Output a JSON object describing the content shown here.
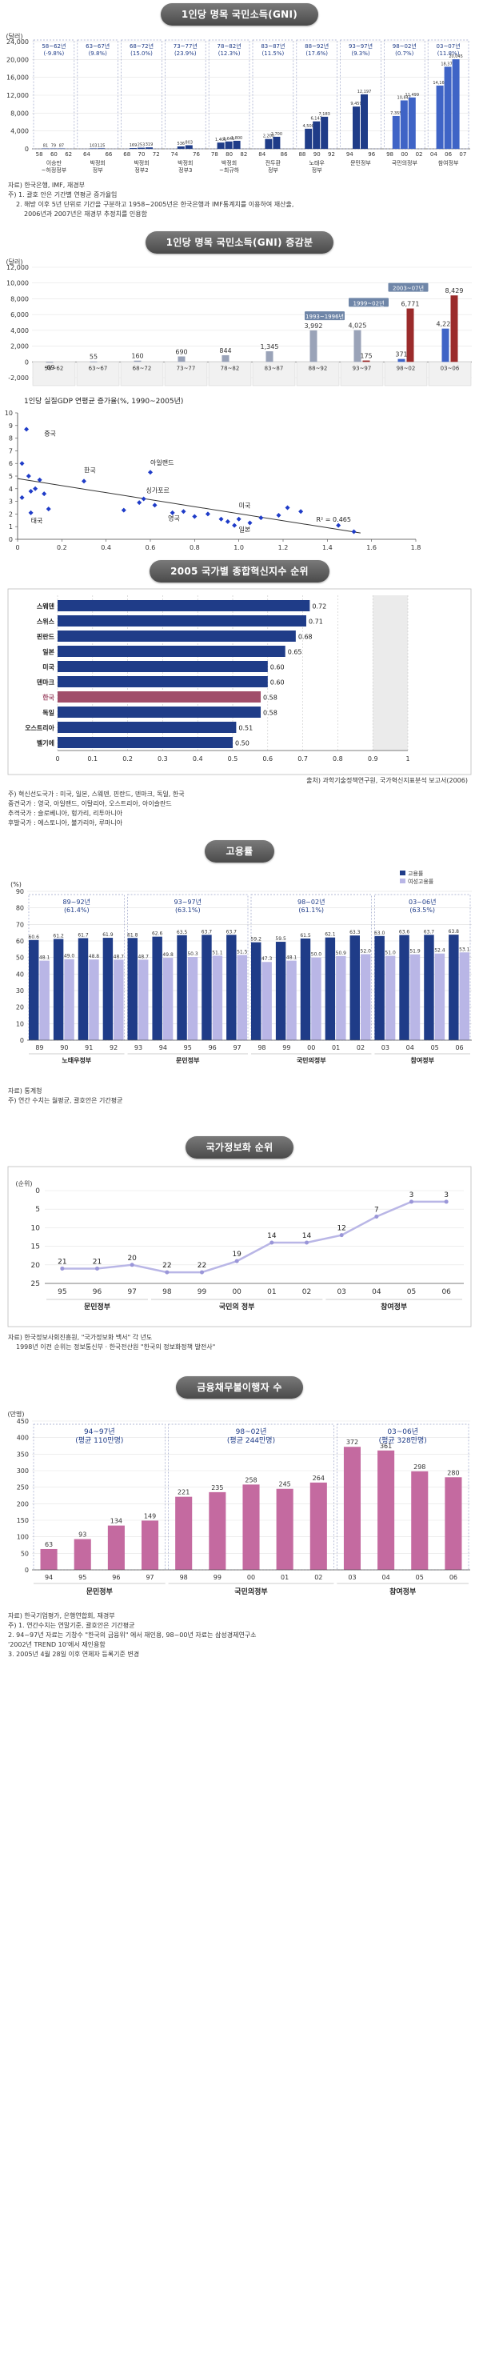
{
  "colors": {
    "pill_bg": "#5a5a5a",
    "bar_dark": "#1f3c88",
    "bar_mid": "#3f64c6",
    "bar_light": "#9aa3b8",
    "bar_red": "#9b2b2b",
    "line_pink": "#c46aa0",
    "line_lav": "#b9b6e6"
  },
  "gni": {
    "title": "1인당 명목 국민소득(GNI)",
    "note_src": "자료) 한국은행, IMF, 재경부",
    "note_lines": [
      "주) 1. 괄호 안은 기간별 연평균 증가율임",
      "2. 해방 이후 5년 단위로 기간을 구분하고 1958~2005년은 한국은행과 IMF통계치를 이용하여 재산출,",
      "2006년과 2007년은 재경부 추정치를 인용함"
    ],
    "chart_data": {
      "type": "bar",
      "ylabel": "(달러)",
      "ylim": [
        0,
        24000
      ],
      "yticks": [
        "0",
        "4,000",
        "8,000",
        "12,000",
        "16,000",
        "20,000",
        "24,000"
      ],
      "groups": [
        {
          "period": "58~62년\n(-9.8%)",
          "label": "이승만\n~허정정부",
          "years": [
            "58",
            "60",
            "62"
          ],
          "values": [
            81,
            79,
            87
          ]
        },
        {
          "period": "63~67년\n(9.8%)",
          "label": "박정희\n정부",
          "years": [
            "64",
            "66"
          ],
          "values": [
            103,
            125
          ]
        },
        {
          "period": "68~72년\n(15.0%)",
          "label": "박정희\n정부2",
          "years": [
            "68",
            "70",
            "72"
          ],
          "values": [
            169,
            253,
            319
          ]
        },
        {
          "period": "73~77년\n(23.9%)",
          "label": "박정희\n정부3",
          "years": [
            "74",
            "76"
          ],
          "values": [
            536,
            803
          ]
        },
        {
          "period": "78~82년\n(12.3%)",
          "label": "박정희\n~최규하",
          "years": [
            "78",
            "80",
            "82"
          ],
          "values": [
            1400,
            1645,
            1800
          ]
        },
        {
          "period": "83~87년\n(11.5%)",
          "label": "전두환\n정부",
          "years": [
            "84",
            "86"
          ],
          "values": [
            2200,
            2700
          ]
        },
        {
          "period": "88~92년\n(17.6%)",
          "label": "노태우\n정부",
          "years": [
            "88",
            "90",
            "92"
          ],
          "values": [
            4500,
            6147,
            7183
          ]
        },
        {
          "period": "93~97년\n(9.3%)",
          "label": "문민정부",
          "years": [
            "94",
            "96"
          ],
          "values": [
            9459,
            12197
          ]
        },
        {
          "period": "98~02년\n(0.7%)",
          "label": "국민의정부",
          "years": [
            "98",
            "00",
            "02"
          ],
          "values": [
            7355,
            10841,
            11499
          ]
        },
        {
          "period": "03~07년\n(11.8%)",
          "label": "참여정부",
          "years": [
            "04",
            "06",
            "07"
          ],
          "values": [
            14162,
            18372,
            20045
          ]
        }
      ]
    }
  },
  "gni_change": {
    "title": "1인당 명목 국민소득(GNI) 증감분",
    "chart_data": {
      "type": "bar",
      "ylabel": "(달러)",
      "ylim": [
        -2000,
        12000
      ],
      "yticks": [
        "-2,000",
        "0",
        "2,000",
        "4,000",
        "6,000",
        "8,000",
        "10,000",
        "12,000"
      ],
      "categories": [
        "58~62",
        "63~67",
        "68~72",
        "73~77",
        "78~82",
        "83~87",
        "88~92",
        "93~97",
        "98~02",
        "03~06"
      ],
      "values": [
        -69,
        55,
        160,
        690,
        844,
        1345,
        3992,
        4025,
        371,
        4222
      ],
      "extra": [
        {
          "category": "93~97",
          "value": 175
        },
        {
          "category": "98~02",
          "value": 6771
        },
        {
          "category": "03~06",
          "value": 8429
        }
      ],
      "callouts": [
        "1993~1996년",
        "1999~02년",
        "2003~07년"
      ]
    }
  },
  "scatter": {
    "title": "1인당 실질GDP 연평균 증가율(%, 1990~2005년)",
    "xlabel": "1인당 실질GDP(1990년 미국=1 기준)",
    "chart_data": {
      "type": "scatter",
      "xlim": [
        0,
        1.8
      ],
      "ylim": [
        0,
        10
      ],
      "xticks": [
        "0",
        "0.2",
        "0.4",
        "0.6",
        "0.8",
        "1.0",
        "1.2",
        "1.4",
        "1.6",
        "1.8"
      ],
      "yticks": [
        "0",
        "1",
        "2",
        "3",
        "4",
        "5",
        "6",
        "7",
        "8",
        "9",
        "10"
      ],
      "points": [
        [
          0.04,
          8.7
        ],
        [
          0.02,
          6.0
        ],
        [
          0.05,
          5.0
        ],
        [
          0.1,
          4.7
        ],
        [
          0.08,
          4.0
        ],
        [
          0.06,
          3.8
        ],
        [
          0.12,
          3.6
        ],
        [
          0.02,
          3.3
        ],
        [
          0.06,
          2.1
        ],
        [
          0.14,
          2.4
        ],
        [
          0.3,
          4.6
        ],
        [
          0.6,
          5.3
        ],
        [
          0.57,
          3.2
        ],
        [
          0.48,
          2.3
        ],
        [
          0.55,
          2.9
        ],
        [
          0.62,
          2.7
        ],
        [
          0.7,
          2.1
        ],
        [
          0.75,
          2.2
        ],
        [
          0.8,
          1.8
        ],
        [
          0.86,
          2.0
        ],
        [
          0.92,
          1.6
        ],
        [
          0.95,
          1.4
        ],
        [
          1.0,
          1.6
        ],
        [
          1.05,
          1.3
        ],
        [
          1.1,
          1.7
        ],
        [
          1.18,
          1.9
        ],
        [
          1.22,
          2.5
        ],
        [
          1.28,
          2.2
        ],
        [
          1.45,
          1.1
        ],
        [
          1.52,
          0.6
        ],
        [
          0.98,
          1.1
        ]
      ],
      "labels": [
        {
          "text": "중국",
          "x": 0.12,
          "y": 8.2
        },
        {
          "text": "한국",
          "x": 0.3,
          "y": 5.3
        },
        {
          "text": "아일랜드",
          "x": 0.6,
          "y": 5.9
        },
        {
          "text": "싱가포르",
          "x": 0.58,
          "y": 3.7
        },
        {
          "text": "태국",
          "x": 0.06,
          "y": 1.3
        },
        {
          "text": "영국",
          "x": 0.68,
          "y": 1.5
        },
        {
          "text": "미국",
          "x": 1.0,
          "y": 2.5
        },
        {
          "text": "일본",
          "x": 1.0,
          "y": 0.6
        }
      ],
      "trend": [
        [
          0,
          4.8
        ],
        [
          1.55,
          0.5
        ]
      ],
      "r2": "R² = 0.465"
    }
  },
  "competitiveness": {
    "title": "2005 국가별 종합혁신지수 순위",
    "source": "출처) 과학기술정책연구원, 국가혁신지표분석 보고서(2006)",
    "note_lines": [
      "주) 혁신선도국가 : 미국, 일본, 스웨덴, 핀란드, 덴마크, 독일, 한국",
      "   중견국가 : 영국, 아일랜드, 이탈리아, 오스트리아, 아이슬란드",
      "   추격국가 : 슬로베니아, 헝가리, 리투아니아",
      "   후발국가 : 에스토니아, 불가리아, 루마니아"
    ],
    "chart_data": {
      "type": "bar",
      "orientation": "horizontal",
      "xlim": [
        0,
        1
      ],
      "xticks": [
        "0",
        "0.1",
        "0.2",
        "0.3",
        "0.4",
        "0.5",
        "0.6",
        "0.7",
        "0.8",
        "0.9",
        "1"
      ],
      "categories": [
        "스웨덴",
        "스위스",
        "핀란드",
        "일본",
        "미국",
        "덴마크",
        "한국",
        "독일",
        "오스트리아",
        "벨기에"
      ],
      "values": [
        0.72,
        0.71,
        0.68,
        0.65,
        0.6,
        0.6,
        0.58,
        0.58,
        0.51,
        0.5
      ],
      "highlight": "한국"
    }
  },
  "employment": {
    "title": "고용률",
    "note_lines": [
      "자료) 통계청",
      "주) 연간 수치는 월평균, 괄호안은 기간평균"
    ],
    "chart_data": {
      "type": "bar",
      "ylabel": "(%)",
      "ylim": [
        0,
        90
      ],
      "yticks": [
        "0",
        "10",
        "20",
        "30",
        "40",
        "50",
        "60",
        "70",
        "80",
        "90"
      ],
      "legend": [
        "고용률",
        "여성고용률"
      ],
      "categories": [
        "89",
        "90",
        "91",
        "92",
        "93",
        "94",
        "95",
        "96",
        "97",
        "98",
        "99",
        "00",
        "01",
        "02",
        "03",
        "04",
        "05",
        "06"
      ],
      "series": [
        {
          "name": "고용률",
          "values": [
            60.6,
            61.2,
            61.7,
            61.9,
            61.8,
            62.6,
            63.5,
            63.7,
            63.7,
            59.2,
            59.5,
            61.5,
            62.1,
            63.3,
            63.0,
            63.6,
            63.7,
            63.8
          ]
        },
        {
          "name": "여성고용률",
          "values": [
            48.1,
            49.0,
            48.8,
            48.7,
            48.7,
            49.8,
            50.3,
            51.1,
            51.5,
            47.3,
            48.1,
            50.0,
            50.9,
            52.0,
            51.0,
            51.9,
            52.4,
            53.1
          ]
        }
      ],
      "periods": [
        {
          "label": "89~92년\n(61.4%)"
        },
        {
          "label": "93~97년\n(63.1%)"
        },
        {
          "label": "98~02년\n(61.1%)"
        },
        {
          "label": "03~06년\n(63.5%)"
        }
      ],
      "eras": [
        "노태우정부",
        "문민정부",
        "국민의정부",
        "참여정부"
      ]
    }
  },
  "info_rank": {
    "title": "국가정보화 순위",
    "note_lines": [
      "자료) 한국정보사회진흥원, \"국가정보화 백서\" 각 년도",
      "1998년 이전 순위는 정보통신부 · 한국전산원 \"한국의 정보화정책 발전사\""
    ],
    "chart_data": {
      "type": "line",
      "ylabel": "(순위)",
      "ylim": [
        25,
        0
      ],
      "yticks": [
        "0",
        "5",
        "10",
        "15",
        "20",
        "25"
      ],
      "categories": [
        "95",
        "96",
        "97",
        "98",
        "99",
        "00",
        "01",
        "02",
        "03",
        "04",
        "05",
        "06"
      ],
      "values": [
        21,
        21,
        20,
        22,
        22,
        19,
        14,
        14,
        12,
        7,
        3,
        3
      ],
      "eras": [
        "문민정부",
        "국민의 정부",
        "참여정부"
      ]
    }
  },
  "debtors": {
    "title": "금융채무불이행자 수",
    "note_lines": [
      "자료) 한국기업평가, 은행연합회, 재경부",
      "주) 1. 연간수치는 연말기준, 괄호안은 기간평균",
      "   2. 94~97년 자료는 기창수 \"한국의 금융위\" 에서 재인용, 98~00년 자료는 삼성경제연구소",
      "      '2002년 TREND 10'에서 재인용함",
      "   3. 2005년 4월 28일 이후 연체자 등록기준 변경"
    ],
    "chart_data": {
      "type": "bar",
      "ylabel": "(만명)",
      "ylim": [
        0,
        450
      ],
      "yticks": [
        "0",
        "50",
        "100",
        "150",
        "200",
        "250",
        "300",
        "350",
        "400",
        "450"
      ],
      "categories": [
        "94",
        "95",
        "96",
        "97",
        "98",
        "99",
        "00",
        "01",
        "02",
        "03",
        "04",
        "05",
        "06"
      ],
      "values": [
        63,
        93,
        134,
        149,
        221,
        235,
        258,
        245,
        264,
        372,
        361,
        298,
        280
      ],
      "periods": [
        {
          "label": "94~97년\n(평균 110만명)"
        },
        {
          "label": "98~02년\n(평균 244만명)"
        },
        {
          "label": "03~06년\n(평균 328만명)"
        }
      ],
      "eras": [
        "문민정부",
        "국민의정부",
        "참여정부"
      ]
    }
  }
}
